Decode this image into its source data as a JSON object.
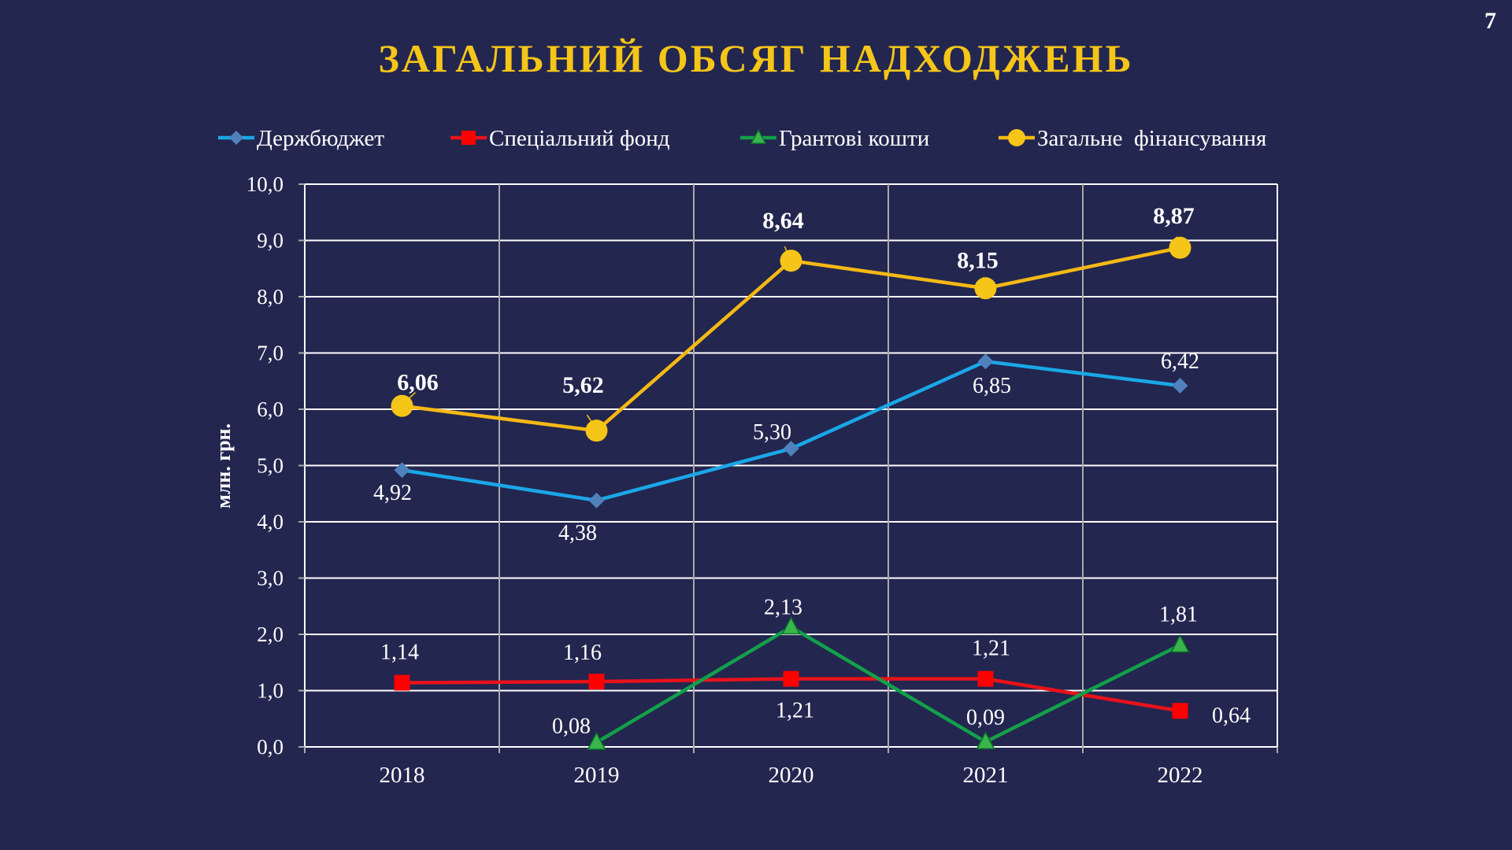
{
  "page": {
    "number": "7",
    "title": "ЗАГАЛЬНИЙ ОБСЯГ НАДХОДЖЕНЬ"
  },
  "chart_data": {
    "type": "line",
    "categories": [
      "2018",
      "2019",
      "2020",
      "2021",
      "2022"
    ],
    "ylabel": "млн. грн.",
    "xlabel": "",
    "ylim": [
      0,
      10
    ],
    "ytick_labels": [
      "0,0",
      "1,0",
      "2,0",
      "3,0",
      "4,0",
      "5,0",
      "6,0",
      "7,0",
      "8,0",
      "9,0",
      "10,0"
    ],
    "grid": true,
    "legend_position": "top",
    "series": [
      {
        "name": "Держбюджет",
        "color": "#1aa7e8",
        "marker_color": "#4f81bd",
        "marker": "diamond",
        "values": [
          4.92,
          4.38,
          5.3,
          6.85,
          6.42
        ],
        "labels": [
          "4,92",
          "4,38",
          "5,30",
          "6,85",
          "6,42"
        ],
        "bold_labels": false
      },
      {
        "name": "Спеціальний фонд",
        "color": "#e8121b",
        "marker_color": "#ff0000",
        "marker": "square",
        "values": [
          1.14,
          1.16,
          1.21,
          1.21,
          0.64
        ],
        "labels": [
          "1,14",
          "1,16",
          "1,21",
          "1,21",
          "0,64"
        ],
        "bold_labels": false
      },
      {
        "name": "Грантові кошти",
        "color": "#12a04a",
        "marker_color": "#3ab54a",
        "marker": "triangle",
        "values": [
          null,
          0.08,
          2.13,
          0.09,
          1.81
        ],
        "labels": [
          null,
          "0,08",
          "2,13",
          "0,09",
          "1,81"
        ],
        "bold_labels": false
      },
      {
        "name": "Загальне  фінансування",
        "color": "#f5b915",
        "marker_color": "#f5c518",
        "marker": "circle",
        "values": [
          6.06,
          5.62,
          8.64,
          8.15,
          8.87
        ],
        "labels": [
          "6,06",
          "5,62",
          "8,64",
          "8,15",
          "8,87"
        ],
        "bold_labels": true
      }
    ]
  }
}
